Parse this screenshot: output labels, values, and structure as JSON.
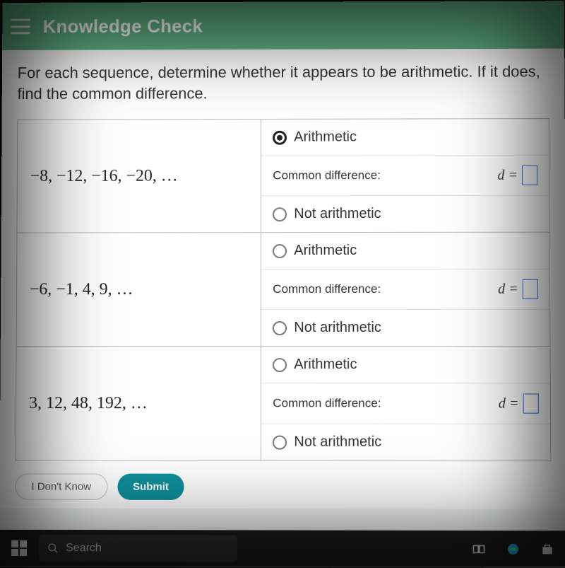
{
  "header": {
    "title": "Knowledge Check",
    "bg_color": "#62b587",
    "text_color": "#ffffff"
  },
  "prompt": "For each sequence, determine whether it appears to be arithmetic. If it does, find the common difference.",
  "option_labels": {
    "arithmetic": "Arithmetic",
    "common_difference": "Common difference:",
    "not_arithmetic": "Not arithmetic",
    "d_equals": "d ="
  },
  "rows": [
    {
      "sequence": "−8, −12, −16, −20, …",
      "selected": "arithmetic",
      "d": ""
    },
    {
      "sequence": "−6, −1, 4, 9, …",
      "selected": null,
      "d": ""
    },
    {
      "sequence": "3, 12, 48, 192, …",
      "selected": null,
      "d": ""
    }
  ],
  "buttons": {
    "idk": "I Don't Know",
    "submit": "Submit"
  },
  "taskbar": {
    "search_placeholder": "Search"
  },
  "style": {
    "answer_box_border": "#2a6fd6",
    "table_border": "#b8b8b8",
    "submit_bg": "#0f8f9a"
  }
}
